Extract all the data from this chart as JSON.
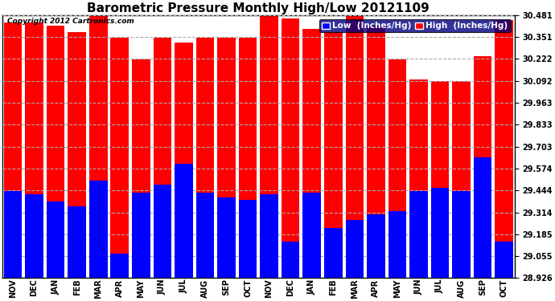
{
  "title": "Barometric Pressure Monthly High/Low 20121109",
  "copyright": "Copyright 2012 Cartronics.com",
  "legend_low": "Low  (Inches/Hg)",
  "legend_high": "High  (Inches/Hg)",
  "months": [
    "NOV",
    "DEC",
    "JAN",
    "FEB",
    "MAR",
    "APR",
    "MAY",
    "JUN",
    "JUL",
    "AUG",
    "SEP",
    "OCT",
    "NOV",
    "DEC",
    "JAN",
    "FEB",
    "MAR",
    "APR",
    "MAY",
    "JUN",
    "JUL",
    "AUG",
    "SEP",
    "OCT"
  ],
  "high_values": [
    30.44,
    30.44,
    30.42,
    30.38,
    30.48,
    30.35,
    30.22,
    30.35,
    30.32,
    30.35,
    30.35,
    30.35,
    30.48,
    30.46,
    30.4,
    30.38,
    30.48,
    30.42,
    30.22,
    30.1,
    30.09,
    30.09,
    30.24,
    30.45
  ],
  "low_values": [
    29.44,
    29.42,
    29.38,
    29.35,
    29.5,
    29.07,
    29.43,
    29.48,
    29.6,
    29.43,
    29.4,
    29.39,
    29.42,
    29.14,
    29.43,
    29.22,
    29.27,
    29.3,
    29.32,
    29.44,
    29.46,
    29.44,
    29.64,
    29.14
  ],
  "ylim_min": 28.926,
  "ylim_max": 30.481,
  "yticks": [
    28.926,
    29.055,
    29.185,
    29.314,
    29.444,
    29.574,
    29.703,
    29.833,
    29.963,
    30.092,
    30.222,
    30.351,
    30.481
  ],
  "high_color": "#ff0000",
  "low_color": "#0000ff",
  "bg_color": "#ffffff",
  "plot_bg_color": "#ffffff",
  "grid_color": "#aaaaaa",
  "title_fontsize": 11,
  "tick_fontsize": 7,
  "legend_fontsize": 7.5
}
